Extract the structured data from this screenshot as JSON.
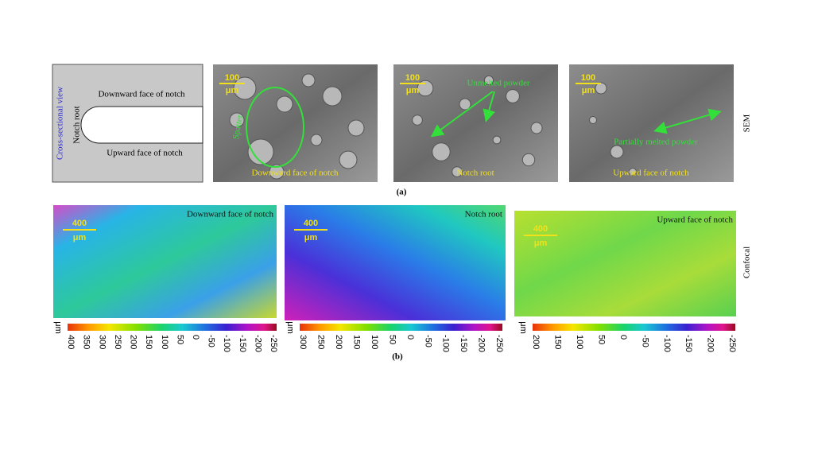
{
  "panel_a": {
    "label": "(a)",
    "side_label": "SEM",
    "schematic": {
      "title": "Cross-sectional view",
      "root": "Notch root",
      "downward": "Downward face of notch",
      "upward": "Upward face of notch"
    },
    "images": [
      {
        "scale": "100",
        "unit": "μm",
        "caption": "Downward face of notch",
        "annotation": "Spatter"
      },
      {
        "scale": "100",
        "unit": "μm",
        "caption": "Notch root",
        "annotation": "Unmelted powder"
      },
      {
        "scale": "100",
        "unit": "μm",
        "caption": "Upward face of notch",
        "annotation": "Partially melted powder"
      }
    ]
  },
  "panel_b": {
    "label": "(b)",
    "side_label": "Confocal",
    "images": [
      {
        "scale": "400",
        "unit": "μm",
        "caption": "Downward face of notch",
        "colorbar_unit": "μm",
        "colorbar_ticks": [
          "400",
          "350",
          "300",
          "250",
          "200",
          "150",
          "100",
          "50",
          "0",
          "-50",
          "-100",
          "-150",
          "-200",
          "-250"
        ]
      },
      {
        "scale": "400",
        "unit": "μm",
        "caption": "Notch root",
        "colorbar_unit": "μm",
        "colorbar_ticks": [
          "300",
          "250",
          "200",
          "150",
          "100",
          "50",
          "0",
          "-50",
          "-100",
          "-150",
          "-200",
          "-250"
        ]
      },
      {
        "scale": "400",
        "unit": "μm",
        "caption": "Upward face of notch",
        "colorbar_unit": "μm",
        "colorbar_ticks": [
          "200",
          "150",
          "100",
          "50",
          "0",
          "-50",
          "-100",
          "-150",
          "-200",
          "-250"
        ]
      }
    ]
  }
}
